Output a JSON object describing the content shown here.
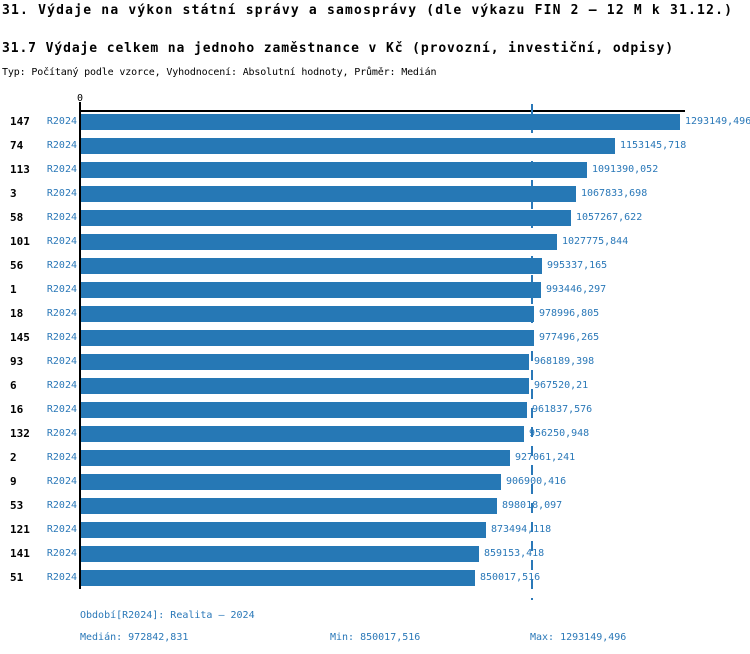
{
  "header": {
    "title": "31. Výdaje na výkon státní správy a samosprávy (dle výkazu FIN 2 – 12 M k 31.12.)",
    "subtitle": "31.7 Výdaje celkem na jednoho zaměstnance v Kč (provozní, investiční, odpisy)",
    "meta": "Typ: Počítaný podle vzorce, Vyhodnocení: Absolutní hodnoty, Průměr: Medián"
  },
  "chart_data": {
    "type": "bar",
    "orientation": "horizontal",
    "axis_origin_label": "0",
    "series_label": "R2024",
    "bar_color": "#2678b5",
    "accent_text_color": "#2a78b8",
    "axis_color": "#000000",
    "xlim": [
      0,
      1293149.496
    ],
    "median_value": 972842.831,
    "categories": [
      "147",
      "74",
      "113",
      "3",
      "58",
      "101",
      "56",
      "1",
      "18",
      "145",
      "93",
      "6",
      "16",
      "132",
      "2",
      "9",
      "53",
      "121",
      "141",
      "51"
    ],
    "rows": [
      {
        "rank": "147",
        "series": "R2024",
        "value_label": "1293149,496"
      },
      {
        "rank": "74",
        "series": "R2024",
        "value_label": "1153145,718"
      },
      {
        "rank": "113",
        "series": "R2024",
        "value_label": "1091390,052"
      },
      {
        "rank": "3",
        "series": "R2024",
        "value_label": "1067833,698"
      },
      {
        "rank": "58",
        "series": "R2024",
        "value_label": "1057267,622"
      },
      {
        "rank": "101",
        "series": "R2024",
        "value_label": "1027775,844"
      },
      {
        "rank": "56",
        "series": "R2024",
        "value_label": "995337,165"
      },
      {
        "rank": "1",
        "series": "R2024",
        "value_label": "993446,297"
      },
      {
        "rank": "18",
        "series": "R2024",
        "value_label": "978996,805"
      },
      {
        "rank": "145",
        "series": "R2024",
        "value_label": "977496,265"
      },
      {
        "rank": "93",
        "series": "R2024",
        "value_label": "968189,398"
      },
      {
        "rank": "6",
        "series": "R2024",
        "value_label": "967520,21"
      },
      {
        "rank": "16",
        "series": "R2024",
        "value_label": "961837,576"
      },
      {
        "rank": "132",
        "series": "R2024",
        "value_label": "956250,948"
      },
      {
        "rank": "2",
        "series": "R2024",
        "value_label": "927061,241"
      },
      {
        "rank": "9",
        "series": "R2024",
        "value_label": "906900,416"
      },
      {
        "rank": "53",
        "series": "R2024",
        "value_label": "898018,097"
      },
      {
        "rank": "121",
        "series": "R2024",
        "value_label": "873494,118"
      },
      {
        "rank": "141",
        "series": "R2024",
        "value_label": "859153,418"
      },
      {
        "rank": "51",
        "series": "R2024",
        "value_label": "850017,516"
      }
    ]
  },
  "footer": {
    "period": "Období[R2024]: Realita – 2024",
    "median": "Medián: 972842,831",
    "min": "Min: 850017,516",
    "max": "Max: 1293149,496"
  }
}
